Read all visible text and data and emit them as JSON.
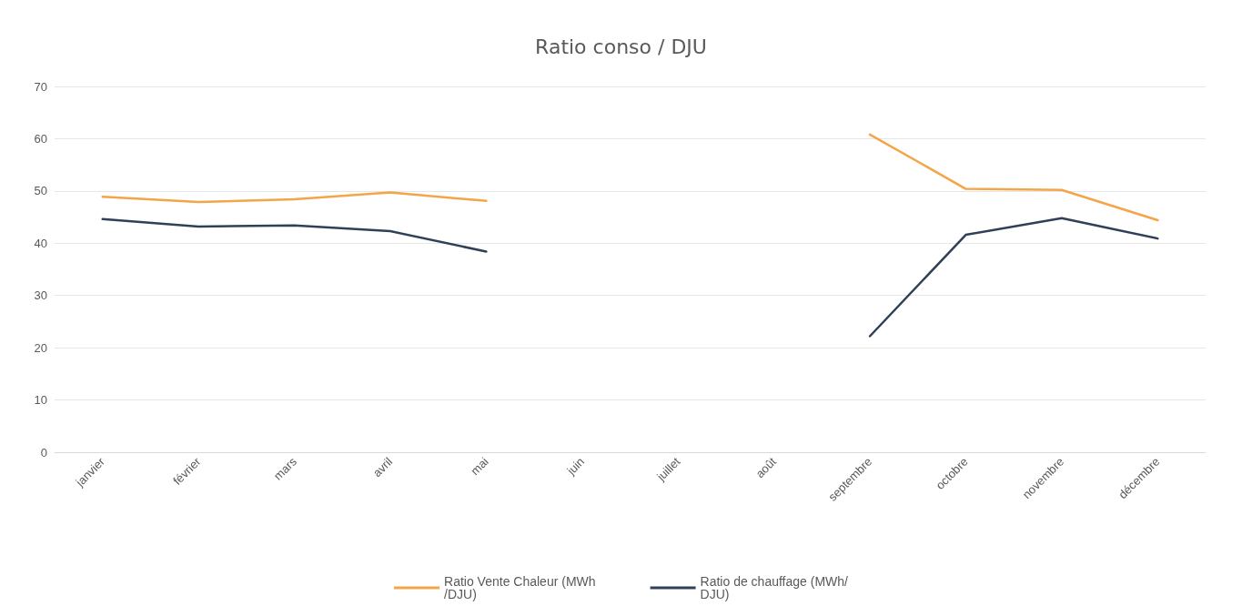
{
  "chart_data": {
    "type": "line",
    "title": "Ratio conso / DJU",
    "categories": [
      "janvier",
      "février",
      "mars",
      "avril",
      "mai",
      "juin",
      "juillet",
      "août",
      "septembre",
      "octobre",
      "novembre",
      "décembre"
    ],
    "series": [
      {
        "name": "Ratio Vente Chaleur (MWh/DJU)",
        "color": "#f4a547",
        "values": [
          48.9,
          47.9,
          48.4,
          49.7,
          48.1,
          null,
          null,
          null,
          60.8,
          50.4,
          50.2,
          44.4
        ]
      },
      {
        "name": "Ratio de chauffage (MWh/DJU)",
        "color": "#2f4058",
        "values": [
          44.6,
          43.2,
          43.4,
          42.3,
          38.4,
          null,
          null,
          null,
          22.2,
          41.6,
          44.8,
          40.9
        ]
      }
    ],
    "ylim": [
      0,
      70
    ],
    "yticks": [
      0,
      10,
      20,
      30,
      40,
      50,
      60,
      70
    ],
    "grid": "y",
    "legend": "bottom",
    "marker": "none",
    "line_style": "solid"
  }
}
